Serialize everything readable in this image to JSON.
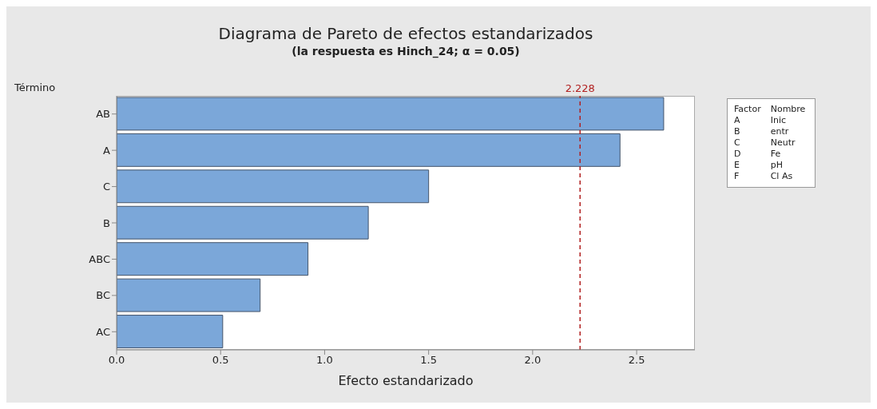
{
  "chart_data": {
    "type": "bar",
    "orientation": "horizontal",
    "title": "Diagrama de Pareto de efectos estandarizados",
    "subtitle": "(la respuesta es Hinch_24; α = 0.05)",
    "xlabel": "Efecto estandarizado",
    "ylabel": "Término",
    "categories": [
      "AB",
      "A",
      "C",
      "B",
      "ABC",
      "BC",
      "AC"
    ],
    "values": [
      2.63,
      2.42,
      1.5,
      1.21,
      0.92,
      0.69,
      0.51
    ],
    "color": "#7ba7d9",
    "xlim": [
      0,
      2.78
    ],
    "xticks": [
      {
        "value": 0,
        "label": "0.0"
      },
      {
        "value": 0.5,
        "label": "0.5"
      },
      {
        "value": 1,
        "label": "1.0"
      },
      {
        "value": 1.5,
        "label": "1.5"
      },
      {
        "value": 2,
        "label": "2.0"
      },
      {
        "value": 2.5,
        "label": "2.5"
      }
    ],
    "ref_lines": [
      {
        "axis": "x",
        "value": 2.228,
        "label": "2.228",
        "color": "#b22222",
        "line_style": "dashed"
      }
    ],
    "annotations": [
      "Factor",
      "Nombre",
      "A",
      "Inic",
      "B",
      "entr",
      "C",
      "Neutr",
      "D",
      "Fe",
      "E",
      "pH",
      "F",
      "Cl As"
    ]
  }
}
